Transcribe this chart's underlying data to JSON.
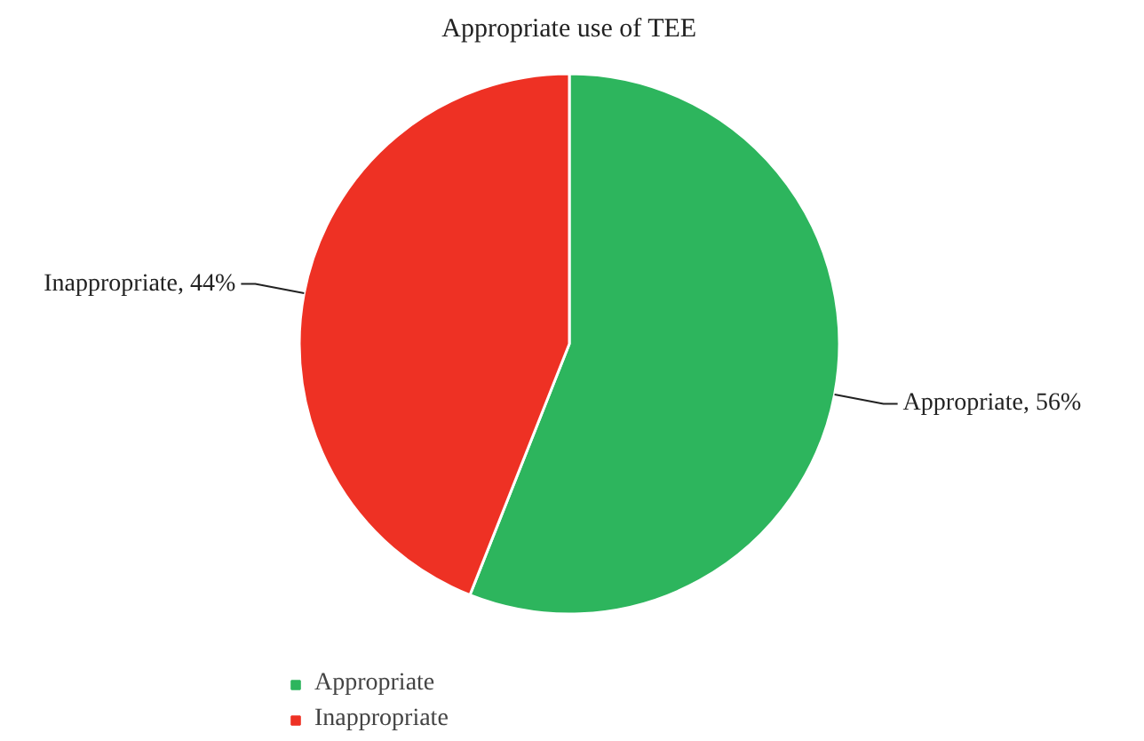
{
  "chart_data": {
    "type": "pie",
    "title": "Appropriate use of TEE",
    "categories": [
      "Appropriate",
      "Inappropriate"
    ],
    "values": [
      56,
      44
    ],
    "colors": [
      "#2db55d",
      "#ee3124"
    ],
    "value_labels": [
      "Appropriate, 56%",
      "Inappropriate, 44%"
    ],
    "legend": "bottom left"
  }
}
